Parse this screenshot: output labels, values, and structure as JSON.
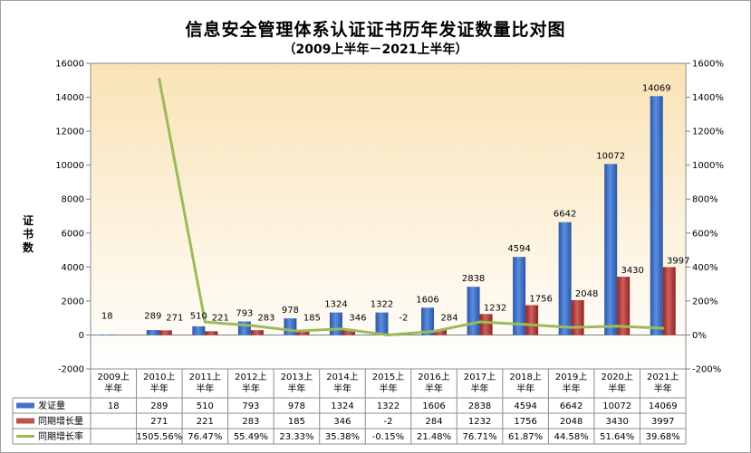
{
  "chart_data": {
    "type": "bar+line",
    "title": "信息安全管理体系认证证书历年发证数量比对图",
    "subtitle": "（2009上半年－2021上半年）",
    "ylabel": "证书数",
    "categories": [
      "2009上半年",
      "2010上半年",
      "2011上半年",
      "2012上半年",
      "2013上半年",
      "2014上半年",
      "2015上半年",
      "2016上半年",
      "2017上半年",
      "2018上半年",
      "2019上半年",
      "2020上半年",
      "2021上半年"
    ],
    "ylim": [
      -2000,
      16000
    ],
    "y_ticks": [
      16000,
      14000,
      12000,
      10000,
      8000,
      6000,
      4000,
      2000,
      0,
      -2000
    ],
    "y2lim": [
      -200,
      1600
    ],
    "y2_ticks": [
      "1600%",
      "1400%",
      "1200%",
      "1000%",
      "800%",
      "600%",
      "400%",
      "200%",
      "0%",
      "-200%"
    ],
    "grid": false,
    "legend": "table-below",
    "series": [
      {
        "name": "发证量",
        "kind": "bar",
        "color": "#4472c4",
        "values": [
          18,
          289,
          510,
          793,
          978,
          1324,
          1322,
          1606,
          2838,
          4594,
          6642,
          10072,
          14069
        ],
        "labels": [
          "18",
          "289",
          "510",
          "793",
          "978",
          "1324",
          "1322",
          "1606",
          "2838",
          "4594",
          "6642",
          "10072",
          "14069"
        ]
      },
      {
        "name": "同期增长量",
        "kind": "bar",
        "color": "#c0504d",
        "values": [
          null,
          271,
          221,
          283,
          185,
          346,
          -2,
          284,
          1232,
          1756,
          2048,
          3430,
          3997
        ],
        "labels": [
          "",
          "271",
          "221",
          "283",
          "185",
          "346",
          "-2",
          "284",
          "1232",
          "1756",
          "2048",
          "3430",
          "3997"
        ]
      },
      {
        "name": "同期增长率",
        "kind": "line",
        "axis": "secondary",
        "color": "#9bbb59",
        "values": [
          null,
          1505.56,
          76.47,
          55.49,
          23.33,
          35.38,
          -0.15,
          21.48,
          76.71,
          61.87,
          44.58,
          51.64,
          39.68
        ],
        "labels": [
          "",
          "1505.56%",
          "76.47%",
          "55.49%",
          "23.33%",
          "35.38%",
          "-0.15%",
          "21.48%",
          "76.71%",
          "61.87%",
          "44.58%",
          "51.64%",
          "39.68%"
        ]
      }
    ]
  }
}
